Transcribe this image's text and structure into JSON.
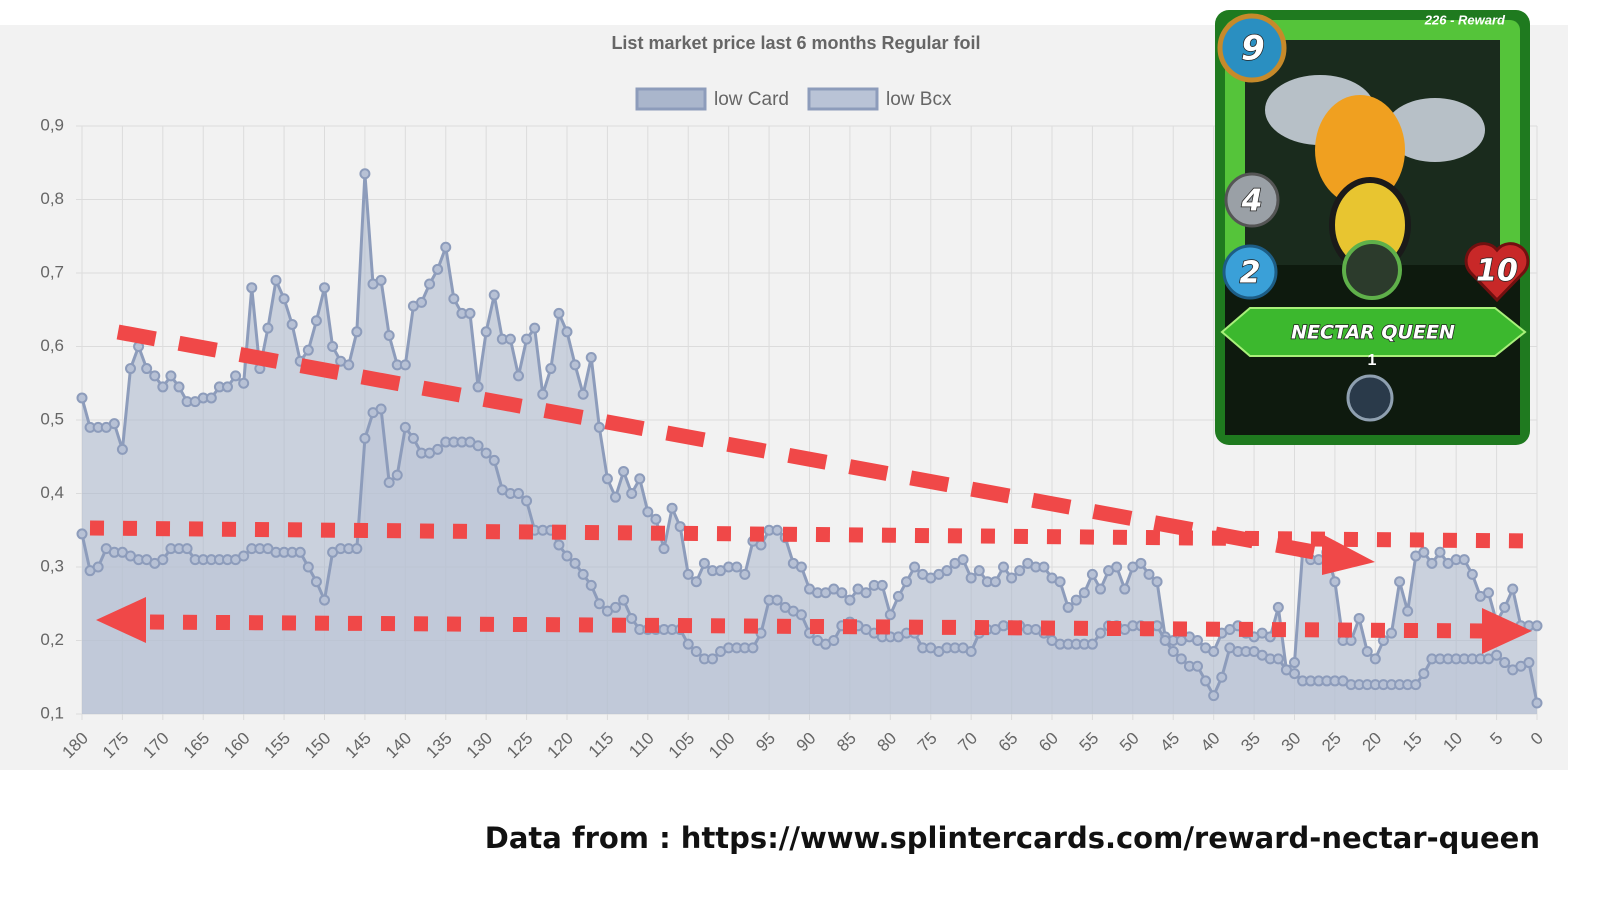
{
  "chart_data": {
    "type": "line",
    "title": "List market price last 6 months Regular foil",
    "legend": "top",
    "grid": true,
    "area": true,
    "markers": true,
    "x": [
      180,
      179,
      178,
      177,
      176,
      175,
      174,
      173,
      172,
      171,
      170,
      169,
      168,
      167,
      166,
      165,
      164,
      163,
      162,
      161,
      160,
      159,
      158,
      157,
      156,
      155,
      154,
      153,
      152,
      151,
      150,
      149,
      148,
      147,
      146,
      145,
      144,
      143,
      142,
      141,
      140,
      139,
      138,
      137,
      136,
      135,
      134,
      133,
      132,
      131,
      130,
      129,
      128,
      127,
      126,
      125,
      124,
      123,
      122,
      121,
      120,
      119,
      118,
      117,
      116,
      115,
      114,
      113,
      112,
      111,
      110,
      109,
      108,
      107,
      106,
      105,
      104,
      103,
      102,
      101,
      100,
      99,
      98,
      97,
      96,
      95,
      94,
      93,
      92,
      91,
      90,
      89,
      88,
      87,
      86,
      85,
      84,
      83,
      82,
      81,
      80,
      79,
      78,
      77,
      76,
      75,
      74,
      73,
      72,
      71,
      70,
      69,
      68,
      67,
      66,
      65,
      64,
      63,
      62,
      61,
      60,
      59,
      58,
      57,
      56,
      55,
      54,
      53,
      52,
      51,
      50,
      49,
      48,
      47,
      46,
      45,
      44,
      43,
      42,
      41,
      40,
      39,
      38,
      37,
      36,
      35,
      34,
      33,
      32,
      31,
      30,
      29,
      28,
      27,
      26,
      25,
      24,
      23,
      22,
      21,
      20,
      19,
      18,
      17,
      16,
      15,
      14,
      13,
      12,
      11,
      10,
      9,
      8,
      7,
      6,
      5,
      4,
      3,
      2,
      1,
      0
    ],
    "series": [
      {
        "name": "low Card",
        "color": "#8d9cbb",
        "fill": "#aab6cc",
        "values": [
          0.53,
          0.49,
          0.49,
          0.49,
          0.495,
          0.46,
          0.57,
          0.6,
          0.57,
          0.56,
          0.545,
          0.56,
          0.545,
          0.525,
          0.525,
          0.53,
          0.53,
          0.545,
          0.545,
          0.56,
          0.55,
          0.68,
          0.57,
          0.625,
          0.69,
          0.665,
          0.63,
          0.58,
          0.595,
          0.635,
          0.68,
          0.6,
          0.58,
          0.575,
          0.62,
          0.835,
          0.685,
          0.69,
          0.615,
          0.575,
          0.575,
          0.655,
          0.66,
          0.685,
          0.705,
          0.735,
          0.665,
          0.645,
          0.645,
          0.545,
          0.62,
          0.67,
          0.61,
          0.61,
          0.56,
          0.61,
          0.625,
          0.535,
          0.57,
          0.645,
          0.62,
          0.575,
          0.535,
          0.585,
          0.49,
          0.42,
          0.395,
          0.43,
          0.4,
          0.42,
          0.375,
          0.365,
          0.325,
          0.38,
          0.355,
          0.29,
          0.28,
          0.305,
          0.295,
          0.295,
          0.3,
          0.3,
          0.29,
          0.335,
          0.33,
          0.35,
          0.35,
          0.34,
          0.305,
          0.3,
          0.27,
          0.265,
          0.265,
          0.27,
          0.265,
          0.255,
          0.27,
          0.265,
          0.275,
          0.275,
          0.235,
          0.26,
          0.28,
          0.3,
          0.29,
          0.285,
          0.29,
          0.295,
          0.305,
          0.31,
          0.285,
          0.295,
          0.28,
          0.28,
          0.3,
          0.285,
          0.295,
          0.305,
          0.3,
          0.3,
          0.285,
          0.28,
          0.245,
          0.255,
          0.265,
          0.29,
          0.27,
          0.295,
          0.3,
          0.27,
          0.3,
          0.305,
          0.29,
          0.28,
          0.205,
          0.2,
          0.2,
          0.205,
          0.2,
          0.19,
          0.185,
          0.21,
          0.215,
          0.22,
          0.21,
          0.205,
          0.21,
          0.205,
          0.245,
          0.16,
          0.17,
          0.32,
          0.31,
          0.31,
          0.32,
          0.28,
          0.2,
          0.2,
          0.23,
          0.185,
          0.175,
          0.2,
          0.21,
          0.28,
          0.24,
          0.315,
          0.32,
          0.305,
          0.32,
          0.305,
          0.31,
          0.31,
          0.29,
          0.26,
          0.265,
          0.225,
          0.245,
          0.27,
          0.22,
          0.22,
          0.22
        ]
      },
      {
        "name": "low Bcx",
        "color": "#8d9cbb",
        "fill": "#b9c3d6",
        "values": [
          0.345,
          0.295,
          0.3,
          0.325,
          0.32,
          0.32,
          0.315,
          0.31,
          0.31,
          0.305,
          0.31,
          0.325,
          0.325,
          0.325,
          0.31,
          0.31,
          0.31,
          0.31,
          0.31,
          0.31,
          0.315,
          0.325,
          0.325,
          0.325,
          0.32,
          0.32,
          0.32,
          0.32,
          0.3,
          0.28,
          0.255,
          0.32,
          0.325,
          0.325,
          0.325,
          0.475,
          0.51,
          0.515,
          0.415,
          0.425,
          0.49,
          0.475,
          0.455,
          0.455,
          0.46,
          0.47,
          0.47,
          0.47,
          0.47,
          0.465,
          0.455,
          0.445,
          0.405,
          0.4,
          0.4,
          0.39,
          0.35,
          0.35,
          0.35,
          0.33,
          0.315,
          0.305,
          0.29,
          0.275,
          0.25,
          0.24,
          0.245,
          0.255,
          0.23,
          0.215,
          0.215,
          0.215,
          0.215,
          0.215,
          0.215,
          0.195,
          0.185,
          0.175,
          0.175,
          0.185,
          0.19,
          0.19,
          0.19,
          0.19,
          0.21,
          0.255,
          0.255,
          0.245,
          0.24,
          0.235,
          0.21,
          0.2,
          0.195,
          0.2,
          0.22,
          0.225,
          0.22,
          0.215,
          0.21,
          0.205,
          0.205,
          0.205,
          0.21,
          0.21,
          0.19,
          0.19,
          0.185,
          0.19,
          0.19,
          0.19,
          0.185,
          0.21,
          0.215,
          0.215,
          0.22,
          0.22,
          0.22,
          0.215,
          0.215,
          0.21,
          0.2,
          0.195,
          0.195,
          0.195,
          0.195,
          0.195,
          0.21,
          0.22,
          0.22,
          0.215,
          0.22,
          0.22,
          0.215,
          0.22,
          0.2,
          0.185,
          0.175,
          0.165,
          0.165,
          0.145,
          0.125,
          0.15,
          0.19,
          0.185,
          0.185,
          0.185,
          0.18,
          0.175,
          0.175,
          0.16,
          0.155,
          0.145,
          0.145,
          0.145,
          0.145,
          0.145,
          0.145,
          0.14,
          0.14,
          0.14,
          0.14,
          0.14,
          0.14,
          0.14,
          0.14,
          0.14,
          0.155,
          0.175,
          0.175,
          0.175,
          0.175,
          0.175,
          0.175,
          0.175,
          0.175,
          0.18,
          0.17,
          0.16,
          0.165,
          0.17,
          0.115
        ]
      }
    ],
    "xlim": [
      180,
      0
    ],
    "xticks": [
      180,
      175,
      170,
      165,
      160,
      155,
      150,
      145,
      140,
      135,
      130,
      125,
      120,
      115,
      110,
      105,
      100,
      95,
      90,
      85,
      80,
      75,
      70,
      65,
      60,
      55,
      50,
      45,
      40,
      35,
      30,
      25,
      20,
      15,
      10,
      5,
      0
    ],
    "ylim": [
      0.1,
      0.9
    ],
    "yticks": [
      {
        "value": 0.1,
        "label": "0,1"
      },
      {
        "value": 0.2,
        "label": "0,2"
      },
      {
        "value": 0.3,
        "label": "0,3"
      },
      {
        "value": 0.4,
        "label": "0,4"
      },
      {
        "value": 0.5,
        "label": "0,5"
      },
      {
        "value": 0.6,
        "label": "0,6"
      },
      {
        "value": 0.7,
        "label": "0,7"
      },
      {
        "value": 0.8,
        "label": "0,8"
      },
      {
        "value": 0.9,
        "label": "0,9"
      }
    ]
  },
  "card": {
    "mana": "9",
    "edition": "226 - Reward",
    "attack": "4",
    "speed": "2",
    "health": "10",
    "name": "NECTAR QUEEN",
    "level": "1"
  },
  "footer": "Data from : https://www.splintercards.com/reward-nectar-queen"
}
